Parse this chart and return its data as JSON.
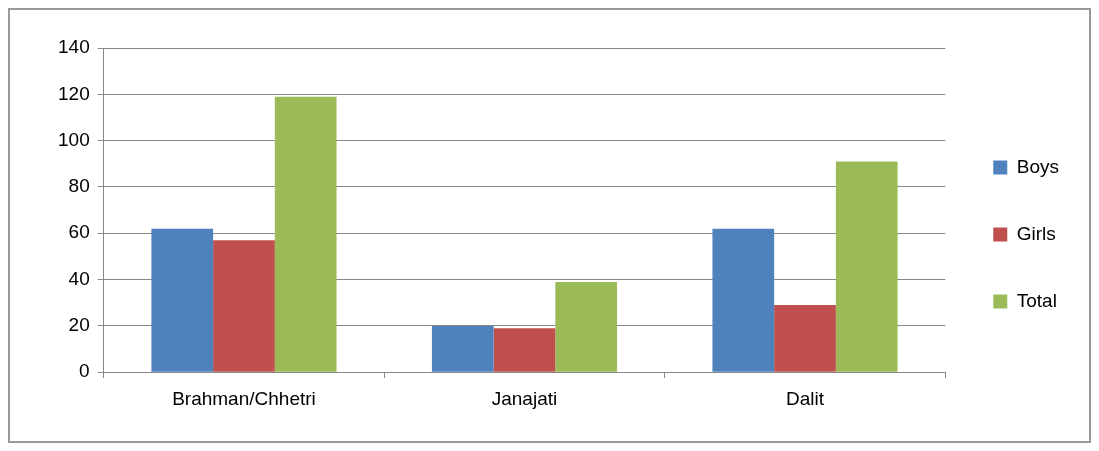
{
  "chart_data": {
    "type": "bar",
    "categories": [
      "Brahman/Chhetri",
      "Janajati",
      "Dalit"
    ],
    "series": [
      {
        "name": "Boys",
        "color": "#4f81bd",
        "values": [
          62,
          20,
          62
        ]
      },
      {
        "name": "Girls",
        "color": "#c0504d",
        "values": [
          57,
          19,
          29
        ]
      },
      {
        "name": "Total",
        "color": "#9bbb59",
        "values": [
          119,
          39,
          91
        ]
      }
    ],
    "ylim": [
      0,
      140
    ],
    "yticks": [
      0,
      20,
      40,
      60,
      80,
      100,
      120,
      140
    ],
    "grid": "y",
    "legend": "right"
  }
}
